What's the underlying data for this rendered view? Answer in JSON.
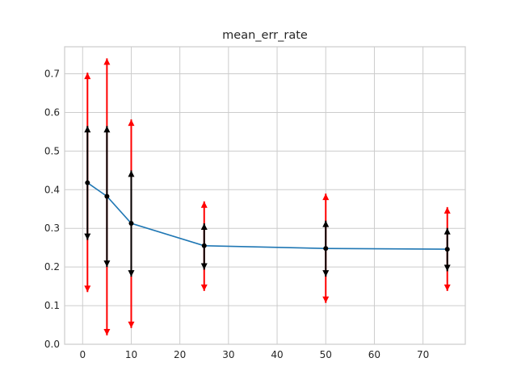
{
  "chart_data": {
    "type": "line",
    "title": "mean_err_rate",
    "xlabel": "",
    "ylabel": "",
    "xlim": [
      -3.7,
      78.7
    ],
    "ylim": [
      0.0,
      0.77
    ],
    "grid": true,
    "x_ticks": [
      0,
      10,
      20,
      30,
      40,
      50,
      60,
      70
    ],
    "y_ticks": [
      0.0,
      0.1,
      0.2,
      0.3,
      0.4,
      0.5,
      0.6,
      0.7
    ],
    "x_tick_labels": [
      "0",
      "10",
      "20",
      "30",
      "40",
      "50",
      "60",
      "70"
    ],
    "y_tick_labels": [
      "0.0",
      "0.1",
      "0.2",
      "0.3",
      "0.4",
      "0.5",
      "0.6",
      "0.7"
    ],
    "series": [
      {
        "x": [
          1,
          5,
          10,
          25,
          50,
          75
        ],
        "y": [
          0.418,
          0.383,
          0.313,
          0.255,
          0.248,
          0.246
        ],
        "color": "#1f77b4"
      }
    ],
    "error_bars": [
      {
        "color": "#000000",
        "lower": [
          0.27,
          0.2,
          0.175,
          0.193,
          0.175,
          0.189
        ],
        "upper": [
          0.565,
          0.565,
          0.45,
          0.313,
          0.32,
          0.301
        ]
      },
      {
        "color": "#ff0000",
        "lower": [
          0.135,
          0.023,
          0.042,
          0.138,
          0.107,
          0.138
        ],
        "upper": [
          0.703,
          0.74,
          0.582,
          0.37,
          0.39,
          0.355
        ]
      }
    ],
    "colors": {
      "grid": "#cccccc",
      "axes_edge": "#cccccc",
      "text": "#262626",
      "marker": "#000000"
    }
  }
}
